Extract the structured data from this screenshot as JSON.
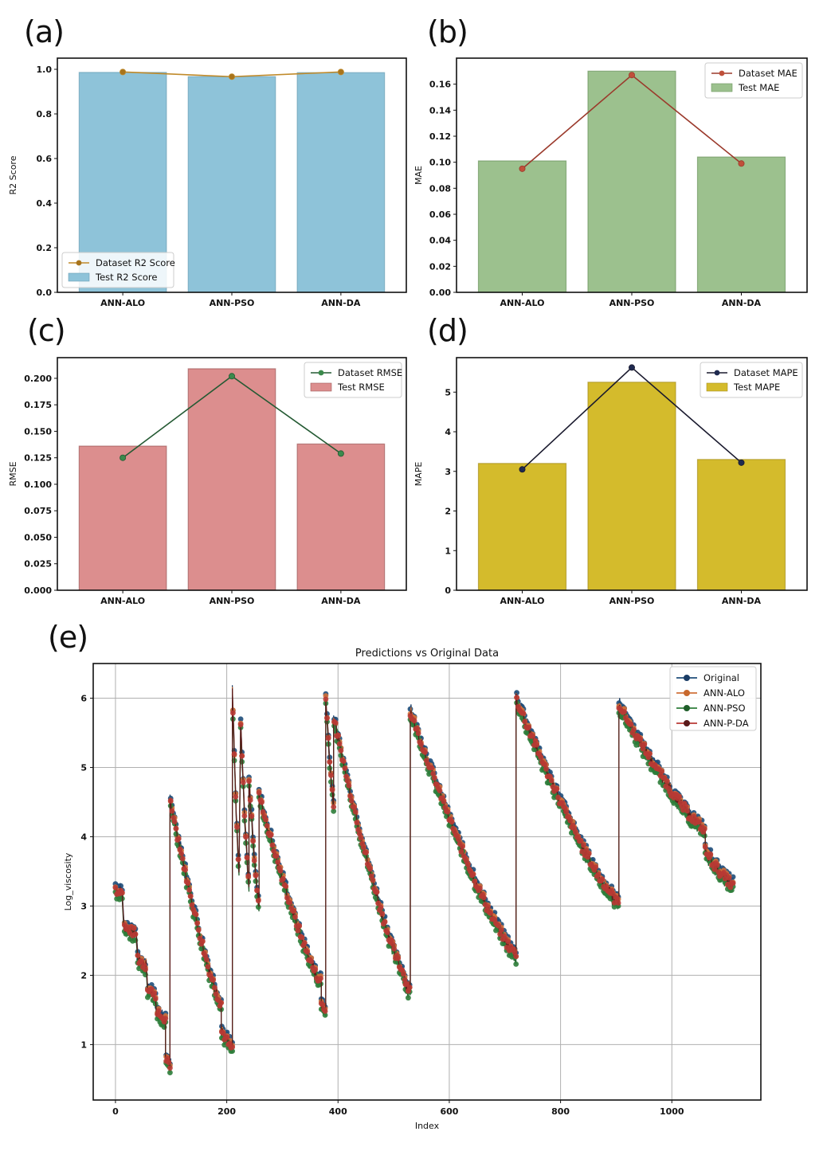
{
  "panels": {
    "a": "(a)",
    "b": "(b)",
    "c": "(c)",
    "d": "(d)",
    "e": "(e)"
  },
  "chart_data": [
    {
      "id": "a",
      "type": "bar",
      "title": "",
      "xlabel": "",
      "ylabel": "R2 Score",
      "categories": [
        "ANN-ALO",
        "ANN-PSO",
        "ANN-DA"
      ],
      "ylim": [
        0,
        1.05
      ],
      "yticks": [
        0.0,
        0.2,
        0.4,
        0.6,
        0.8,
        1.0
      ],
      "ytick_labels": [
        "0.0",
        "0.2",
        "0.4",
        "0.6",
        "0.8",
        "1.0"
      ],
      "series": [
        {
          "name": "Test R2 Score",
          "kind": "bar",
          "color": "#8ec3d9",
          "edge": "#6a9fb6",
          "values": [
            0.986,
            0.967,
            0.985
          ]
        },
        {
          "name": "Dataset R2 Score",
          "kind": "line",
          "color": "#c08a2a",
          "marker_color": "#a8741c",
          "values": [
            0.988,
            0.967,
            0.988
          ]
        }
      ],
      "legend": {
        "position": "lower-left",
        "order": [
          "Dataset R2 Score",
          "Test R2 Score"
        ]
      }
    },
    {
      "id": "b",
      "type": "bar",
      "title": "",
      "xlabel": "",
      "ylabel": "MAE",
      "categories": [
        "ANN-ALO",
        "ANN-PSO",
        "ANN-DA"
      ],
      "ylim": [
        0,
        0.18
      ],
      "yticks": [
        0.0,
        0.02,
        0.04,
        0.06,
        0.08,
        0.1,
        0.12,
        0.14,
        0.16
      ],
      "ytick_labels": [
        "0.00",
        "0.02",
        "0.04",
        "0.06",
        "0.08",
        "0.10",
        "0.12",
        "0.14",
        "0.16"
      ],
      "series": [
        {
          "name": "Test MAE",
          "kind": "bar",
          "color": "#9cc18e",
          "edge": "#6e9660",
          "values": [
            0.101,
            0.17,
            0.104
          ]
        },
        {
          "name": "Dataset MAE",
          "kind": "line",
          "color": "#9b3a2c",
          "marker_color": "#c0503a",
          "values": [
            0.095,
            0.167,
            0.099
          ]
        }
      ],
      "legend": {
        "position": "top-right",
        "order": [
          "Dataset MAE",
          "Test MAE"
        ]
      }
    },
    {
      "id": "c",
      "type": "bar",
      "title": "",
      "xlabel": "",
      "ylabel": "RMSE",
      "categories": [
        "ANN-ALO",
        "ANN-PSO",
        "ANN-DA"
      ],
      "ylim": [
        0,
        0.2195
      ],
      "yticks": [
        0.0,
        0.025,
        0.05,
        0.075,
        0.1,
        0.125,
        0.15,
        0.175,
        0.2
      ],
      "ytick_labels": [
        "0.000",
        "0.025",
        "0.050",
        "0.075",
        "0.100",
        "0.125",
        "0.150",
        "0.175",
        "0.200"
      ],
      "series": [
        {
          "name": "Test RMSE",
          "kind": "bar",
          "color": "#dc8e8e",
          "edge": "#a05a5a",
          "values": [
            0.136,
            0.209,
            0.138
          ]
        },
        {
          "name": "Dataset RMSE",
          "kind": "line",
          "color": "#245a33",
          "marker_color": "#3b8a4c",
          "values": [
            0.125,
            0.202,
            0.129
          ]
        }
      ],
      "legend": {
        "position": "top-right",
        "order": [
          "Dataset RMSE",
          "Test RMSE"
        ]
      }
    },
    {
      "id": "d",
      "type": "bar",
      "title": "",
      "xlabel": "",
      "ylabel": "MAPE",
      "categories": [
        "ANN-ALO",
        "ANN-PSO",
        "ANN-DA"
      ],
      "ylim": [
        0,
        5.87
      ],
      "yticks": [
        0,
        1,
        2,
        3,
        4,
        5
      ],
      "ytick_labels": [
        "0",
        "1",
        "2",
        "3",
        "4",
        "5"
      ],
      "series": [
        {
          "name": "Test MAPE",
          "kind": "bar",
          "color": "#d4bb2c",
          "edge": "#a89020",
          "values": [
            3.2,
            5.25,
            3.3
          ]
        },
        {
          "name": "Dataset MAPE",
          "kind": "line",
          "color": "#1a1a2e",
          "marker_color": "#1f2a50",
          "values": [
            3.05,
            5.62,
            3.22
          ]
        }
      ],
      "legend": {
        "position": "top-right",
        "order": [
          "Dataset MAPE",
          "Test MAPE"
        ]
      }
    },
    {
      "id": "e",
      "type": "line",
      "title": "Predictions vs Original Data",
      "xlabel": "Index",
      "ylabel": "Log_viscosity",
      "xlim": [
        -40,
        1160
      ],
      "ylim": [
        0.2,
        6.5
      ],
      "xticks": [
        0,
        200,
        400,
        600,
        800,
        1000
      ],
      "xtick_labels": [
        "0",
        "200",
        "400",
        "600",
        "800",
        "1000"
      ],
      "yticks": [
        1,
        2,
        3,
        4,
        5,
        6
      ],
      "ytick_labels": [
        "1",
        "2",
        "3",
        "4",
        "5",
        "6"
      ],
      "grid": true,
      "legend": {
        "position": "top-right",
        "order": [
          "Original",
          "ANN-ALO",
          "ANN-PSO",
          "ANN-P-DA"
        ]
      },
      "series_styles": [
        {
          "name": "Original",
          "color": "#1f4e7a",
          "marker_color": "#1a3d66",
          "offset": 0.06
        },
        {
          "name": "ANN-ALO",
          "color": "#d0703a",
          "marker_color": "#c8692e",
          "offset": 0.02
        },
        {
          "name": "ANN-PSO",
          "color": "#2e7d3a",
          "marker_color": "#1f5e2a",
          "offset": -0.07
        },
        {
          "name": "ANN-P-DA",
          "color": "#b83a34",
          "marker_color": "#5a1a1a",
          "offset": 0.0
        }
      ],
      "segments_approx": [
        {
          "x": [
            0,
            12
          ],
          "y": [
            3.25,
            3.2
          ]
        },
        {
          "x": [
            15,
            37
          ],
          "y": [
            2.7,
            2.6
          ]
        },
        {
          "x": [
            40,
            55
          ],
          "y": [
            2.25,
            2.15
          ]
        },
        {
          "x": [
            58,
            72
          ],
          "y": [
            1.8,
            1.72
          ]
        },
        {
          "x": [
            74,
            90
          ],
          "y": [
            1.45,
            1.35
          ]
        },
        {
          "x": [
            90,
            98
          ],
          "y": [
            0.85,
            0.65
          ]
        },
        {
          "x": [
            98,
            190
          ],
          "y": [
            4.55,
            1.6
          ]
        },
        {
          "x": [
            190,
            210
          ],
          "y": [
            1.2,
            0.95
          ]
        },
        {
          "x": [
            210,
            222
          ],
          "y": [
            6.1,
            3.5
          ]
        },
        {
          "x": [
            225,
            240
          ],
          "y": [
            5.6,
            3.3
          ]
        },
        {
          "x": [
            240,
            258
          ],
          "y": [
            4.85,
            3.0
          ]
        },
        {
          "x": [
            258,
            370
          ],
          "y": [
            4.6,
            1.9
          ]
        },
        {
          "x": [
            370,
            378
          ],
          "y": [
            1.6,
            1.5
          ]
        },
        {
          "x": [
            378,
            392
          ],
          "y": [
            6.0,
            4.5
          ]
        },
        {
          "x": [
            392,
            520
          ],
          "y": [
            5.7,
            2.0
          ]
        },
        {
          "x": [
            520,
            530
          ],
          "y": [
            1.9,
            1.8
          ]
        },
        {
          "x": [
            530,
            720
          ],
          "y": [
            5.8,
            2.3
          ]
        },
        {
          "x": [
            720,
            905
          ],
          "y": [
            6.0,
            3.05
          ]
        },
        {
          "x": [
            905,
            1060
          ],
          "y": [
            5.9,
            4.1
          ]
        },
        {
          "x": [
            1060,
            1110
          ],
          "y": [
            3.8,
            3.3
          ]
        }
      ]
    }
  ]
}
